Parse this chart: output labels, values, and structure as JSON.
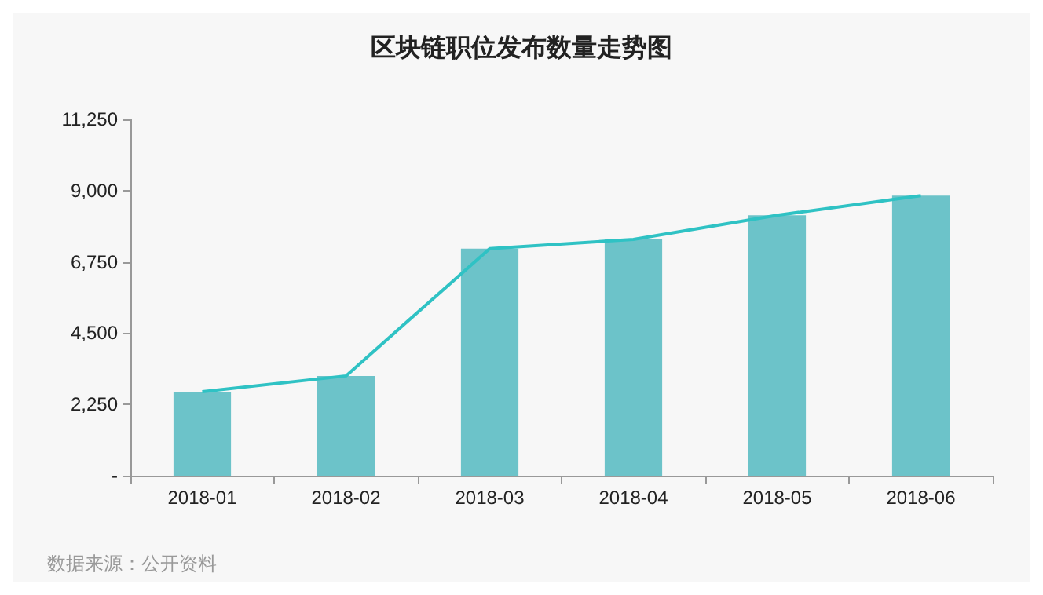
{
  "chart_data": {
    "type": "bar",
    "title": "区块链职位发布数量走势图",
    "categories": [
      "2018-01",
      "2018-02",
      "2018-03",
      "2018-04",
      "2018-05",
      "2018-06"
    ],
    "series": [
      {
        "color": "#6cc3c9",
        "values": [
          2650,
          3150,
          7170,
          7460,
          8220,
          8840
        ]
      },
      {
        "type": "line",
        "color": "#2fc2c4",
        "values": [
          2650,
          3150,
          7170,
          7460,
          8220,
          8840
        ]
      }
    ],
    "ylim": [
      0,
      11250
    ],
    "yticks": [
      {
        "value": 0,
        "label": "-"
      },
      {
        "value": 2250,
        "label": "2,250"
      },
      {
        "value": 4500,
        "label": "4,500"
      },
      {
        "value": 6750,
        "label": "6,750"
      },
      {
        "value": 9000,
        "label": "9,000"
      },
      {
        "value": 11250,
        "label": "11,250"
      }
    ],
    "grid": false,
    "marker": "none",
    "line_style": "solid",
    "annotations": [
      "数据来源：公开资料"
    ]
  }
}
